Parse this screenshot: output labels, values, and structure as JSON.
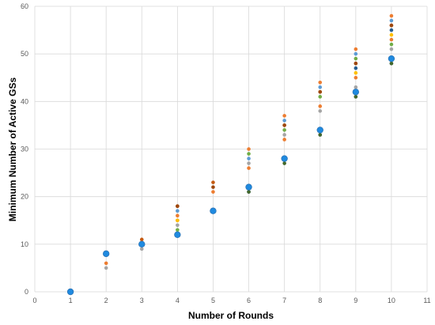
{
  "chart_data": {
    "type": "scatter",
    "title": "",
    "xlabel": "Number of Rounds",
    "ylabel": "Minimum Number of Active GSs",
    "xlim": [
      0,
      11
    ],
    "ylim": [
      0,
      60
    ],
    "x_ticks": [
      "0",
      "1",
      "2",
      "3",
      "4",
      "5",
      "6",
      "7",
      "8",
      "9",
      "10",
      "11"
    ],
    "y_ticks": [
      "0",
      "10",
      "20",
      "30",
      "40",
      "50",
      "60"
    ],
    "grid": "major x and y",
    "legend": "none",
    "series": [
      {
        "color": "#a5a5a5",
        "values": [
          [
            2,
            5
          ],
          [
            3,
            9
          ],
          [
            4,
            14
          ],
          [
            6,
            27
          ],
          [
            7,
            33
          ],
          [
            8,
            38
          ],
          [
            9,
            43
          ],
          [
            10,
            51
          ]
        ]
      },
      {
        "color": "#ed7d31",
        "values": [
          [
            2,
            6
          ],
          [
            3,
            10
          ],
          [
            4,
            15
          ],
          [
            4,
            16
          ],
          [
            5,
            21
          ],
          [
            6,
            26
          ],
          [
            6,
            30
          ],
          [
            7,
            32
          ],
          [
            7,
            37
          ],
          [
            8,
            39
          ],
          [
            8,
            44
          ],
          [
            9,
            45
          ],
          [
            9,
            51
          ],
          [
            10,
            53
          ],
          [
            10,
            58
          ]
        ]
      },
      {
        "color": "#c55a11",
        "values": [
          [
            3,
            11
          ],
          [
            4,
            18
          ],
          [
            5,
            23
          ],
          [
            7,
            35
          ],
          [
            8,
            42
          ],
          [
            9,
            48
          ],
          [
            10,
            56
          ]
        ]
      },
      {
        "color": "#ffc000",
        "values": [
          [
            4,
            15
          ],
          [
            9,
            46
          ],
          [
            10,
            54
          ]
        ]
      },
      {
        "color": "#5b9bd5",
        "values": [
          [
            4,
            17
          ],
          [
            6,
            28
          ],
          [
            7,
            36
          ],
          [
            8,
            43
          ],
          [
            9,
            50
          ],
          [
            10,
            57
          ]
        ]
      },
      {
        "color": "#70ad47",
        "values": [
          [
            4,
            13
          ],
          [
            6,
            29
          ],
          [
            7,
            34
          ],
          [
            8,
            41
          ],
          [
            9,
            49
          ],
          [
            10,
            52
          ]
        ]
      },
      {
        "color": "#9e480e",
        "values": [
          [
            4,
            18
          ],
          [
            5,
            22
          ],
          [
            7,
            35
          ],
          [
            8,
            42
          ],
          [
            9,
            48
          ],
          [
            10,
            56
          ]
        ]
      },
      {
        "color": "#264478",
        "values": [
          [
            6,
            21
          ],
          [
            8,
            33
          ],
          [
            9,
            41
          ],
          [
            10,
            48
          ]
        ]
      },
      {
        "color": "#255e91",
        "values": [
          [
            9,
            47
          ],
          [
            10,
            55
          ]
        ]
      },
      {
        "color": "#43682b",
        "values": [
          [
            4,
            12
          ],
          [
            5,
            17
          ],
          [
            6,
            21
          ],
          [
            7,
            27
          ],
          [
            8,
            33
          ],
          [
            9,
            41
          ],
          [
            10,
            48
          ]
        ]
      },
      {
        "color": "#1f8ae0",
        "values": [
          [
            1,
            0
          ],
          [
            2,
            8
          ],
          [
            3,
            10
          ],
          [
            4,
            12
          ],
          [
            5,
            17
          ],
          [
            6,
            22
          ],
          [
            7,
            28
          ],
          [
            8,
            34
          ],
          [
            9,
            42
          ],
          [
            10,
            49
          ]
        ],
        "emphasis": true
      }
    ]
  }
}
